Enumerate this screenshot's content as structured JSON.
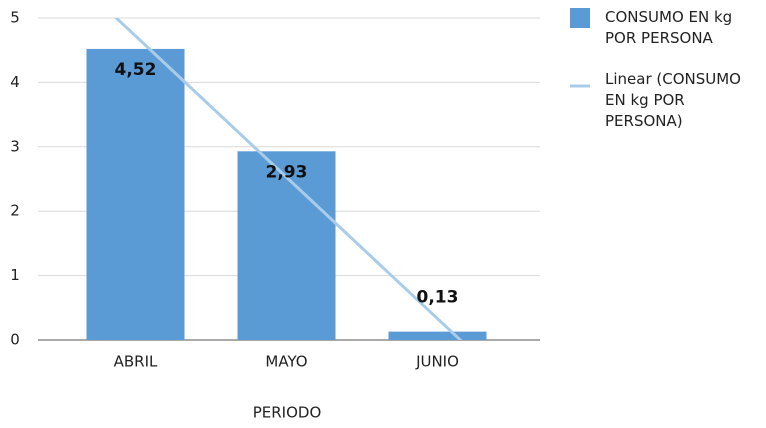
{
  "chart_data": {
    "type": "bar",
    "x_label": "PERIODO",
    "categories": [
      "ABRIL",
      "MAYO",
      "JUNIO"
    ],
    "series": [
      {
        "name": "CONSUMO EN kg POR PERSONA",
        "color": "#5b9bd5",
        "values": [
          4.52,
          2.93,
          0.13
        ],
        "value_labels": [
          "4,52",
          "2,93",
          "0,13"
        ]
      }
    ],
    "trendline": {
      "name": "Linear (CONSUMO EN kg POR PERSONA)",
      "color": "#a9cce9",
      "type": "linear"
    },
    "ylim": [
      0,
      5
    ],
    "yticks": [
      0,
      1,
      2,
      3,
      4,
      5
    ],
    "grid": true,
    "legend": "right"
  }
}
